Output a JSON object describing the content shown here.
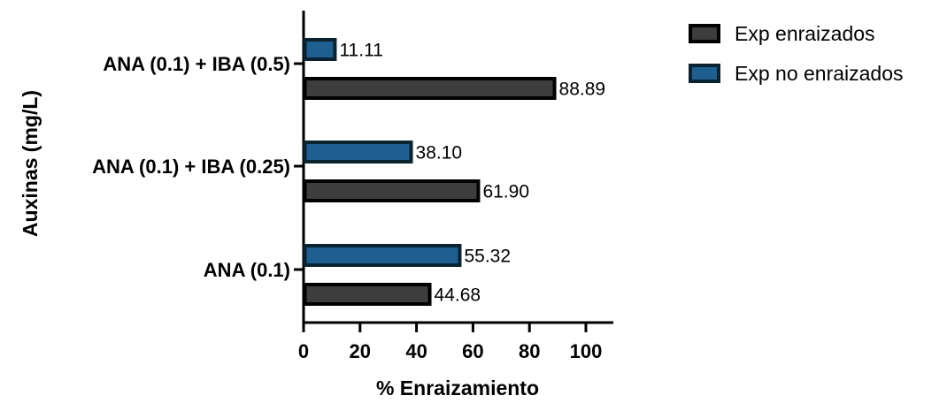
{
  "chart_data": {
    "type": "bar",
    "orientation": "horizontal",
    "categories": [
      "ANA (0.1) + IBA (0.5)",
      "ANA (0.1) + IBA (0.25)",
      "ANA (0.1)"
    ],
    "series": [
      {
        "name": "Exp enraizados",
        "values": [
          88.89,
          61.9,
          44.68
        ],
        "labels": [
          "88.89",
          "61.90",
          "44.68"
        ],
        "color": "#3d3d3d",
        "edge_color": "#000000"
      },
      {
        "name": "Exp no enraizados",
        "values": [
          11.11,
          38.1,
          55.32
        ],
        "labels": [
          "11.11",
          "38.10",
          "55.32"
        ],
        "color": "#1f5f8f",
        "edge_color": "#0b2230"
      }
    ],
    "xlabel": "% Enraizamiento",
    "ylabel": "Auxinas (mg/L)",
    "xlim": [
      0,
      110
    ],
    "xticks": [
      0,
      20,
      40,
      60,
      80,
      100
    ],
    "grid": false,
    "legend_position": "top-right"
  }
}
